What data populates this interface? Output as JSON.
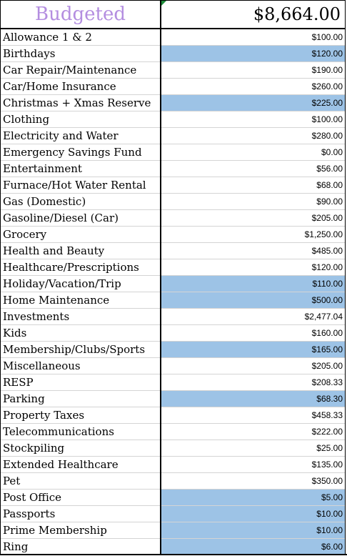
{
  "header": {
    "label": "Budgeted",
    "total": "$8,664.00"
  },
  "rows": [
    {
      "name": "Allowance 1 & 2",
      "amount": "$100.00",
      "highlight": false
    },
    {
      "name": "Birthdays",
      "amount": "$120.00",
      "highlight": true
    },
    {
      "name": "Car Repair/Maintenance",
      "amount": "$190.00",
      "highlight": false
    },
    {
      "name": "Car/Home Insurance",
      "amount": "$260.00",
      "highlight": false
    },
    {
      "name": "Christmas + Xmas Reserve",
      "amount": "$225.00",
      "highlight": true
    },
    {
      "name": "Clothing",
      "amount": "$100.00",
      "highlight": false
    },
    {
      "name": "Electricity and Water",
      "amount": "$280.00",
      "highlight": false
    },
    {
      "name": "Emergency Savings Fund",
      "amount": "$0.00",
      "highlight": false
    },
    {
      "name": "Entertainment",
      "amount": "$56.00",
      "highlight": false
    },
    {
      "name": "Furnace/Hot Water Rental",
      "amount": "$68.00",
      "highlight": false
    },
    {
      "name": "Gas (Domestic)",
      "amount": "$90.00",
      "highlight": false
    },
    {
      "name": "Gasoline/Diesel (Car)",
      "amount": "$205.00",
      "highlight": false
    },
    {
      "name": "Grocery",
      "amount": "$1,250.00",
      "highlight": false
    },
    {
      "name": "Health and Beauty",
      "amount": "$485.00",
      "highlight": false
    },
    {
      "name": "Healthcare/Prescriptions",
      "amount": "$120.00",
      "highlight": false
    },
    {
      "name": "Holiday/Vacation/Trip",
      "amount": "$110.00",
      "highlight": true
    },
    {
      "name": "Home Maintenance",
      "amount": "$500.00",
      "highlight": true
    },
    {
      "name": "Investments",
      "amount": "$2,477.04",
      "highlight": false
    },
    {
      "name": "Kids",
      "amount": "$160.00",
      "highlight": false
    },
    {
      "name": "Membership/Clubs/Sports",
      "amount": "$165.00",
      "highlight": true
    },
    {
      "name": "Miscellaneous",
      "amount": "$205.00",
      "highlight": false
    },
    {
      "name": "RESP",
      "amount": "$208.33",
      "highlight": false
    },
    {
      "name": "Parking",
      "amount": "$68.30",
      "highlight": true
    },
    {
      "name": "Property Taxes",
      "amount": "$458.33",
      "highlight": false
    },
    {
      "name": "Telecommunications",
      "amount": "$222.00",
      "highlight": false
    },
    {
      "name": "Stockpiling",
      "amount": "$25.00",
      "highlight": false
    },
    {
      "name": "Extended Healthcare",
      "amount": "$135.00",
      "highlight": false
    },
    {
      "name": "Pet",
      "amount": "$350.00",
      "highlight": false
    },
    {
      "name": "Post Office",
      "amount": "$5.00",
      "highlight": true
    },
    {
      "name": "Passports",
      "amount": "$10.00",
      "highlight": true
    },
    {
      "name": "Prime Membership",
      "amount": "$10.00",
      "highlight": true
    },
    {
      "name": "Ring",
      "amount": "$6.00",
      "highlight": true
    }
  ],
  "colors": {
    "highlight": "#9dc3e6",
    "header_label": "#b48ee0",
    "grid": "#d4d4d4"
  }
}
